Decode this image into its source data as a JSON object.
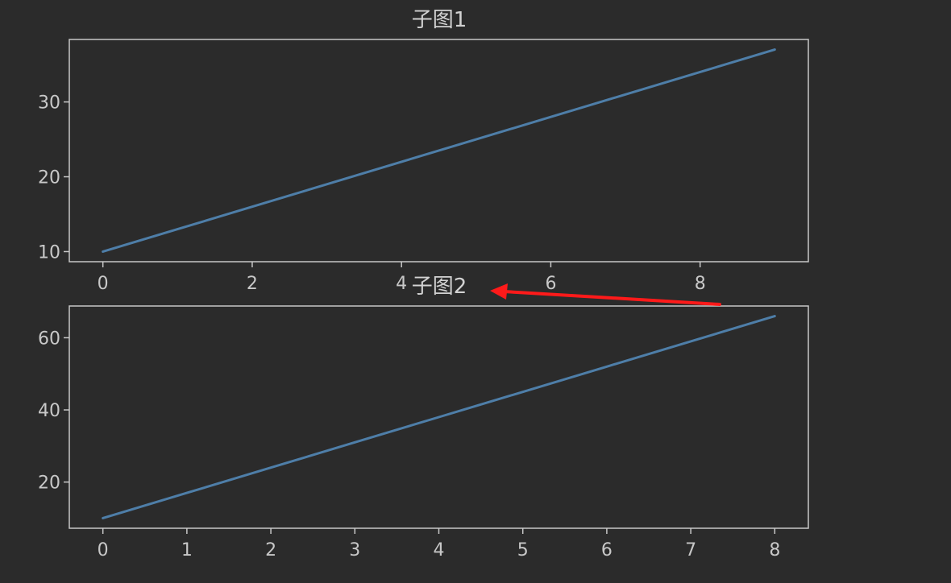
{
  "colors": {
    "background": "#2b2b2b",
    "axes_frame": "#c8c8c8",
    "tick_text": "#c8c8c8",
    "title_text": "#d2d2d2",
    "series_line": "#4e7ea8",
    "annotation_arrow": "#ff1a1a"
  },
  "chart_data": [
    {
      "type": "line",
      "title": "子图1",
      "x": [
        0,
        1,
        2,
        3,
        4,
        5,
        6,
        7,
        8,
        9
      ],
      "series": [
        {
          "values": [
            10,
            13,
            16,
            19,
            22,
            25,
            28,
            31,
            34,
            37
          ]
        }
      ],
      "xticks": [
        0,
        2,
        4,
        6,
        8
      ],
      "yticks": [
        10,
        20,
        30
      ],
      "xlim": [
        -0.45,
        9.45
      ],
      "ylim": [
        8.65,
        38.35
      ],
      "grid": false
    },
    {
      "type": "line",
      "title": "子图2",
      "x": [
        0,
        1,
        2,
        3,
        4,
        5,
        6,
        7,
        8
      ],
      "series": [
        {
          "values": [
            10,
            17,
            24,
            31,
            38,
            45,
            52,
            59,
            66
          ]
        }
      ],
      "xticks": [
        0,
        1,
        2,
        3,
        4,
        5,
        6,
        7,
        8
      ],
      "yticks": [
        20,
        40,
        60
      ],
      "xlim": [
        -0.4,
        8.4
      ],
      "ylim": [
        7.2,
        68.8
      ],
      "grid": false
    }
  ],
  "annotation": {
    "type": "arrow",
    "color": "#ff1a1a",
    "target": "chart-2-title"
  }
}
